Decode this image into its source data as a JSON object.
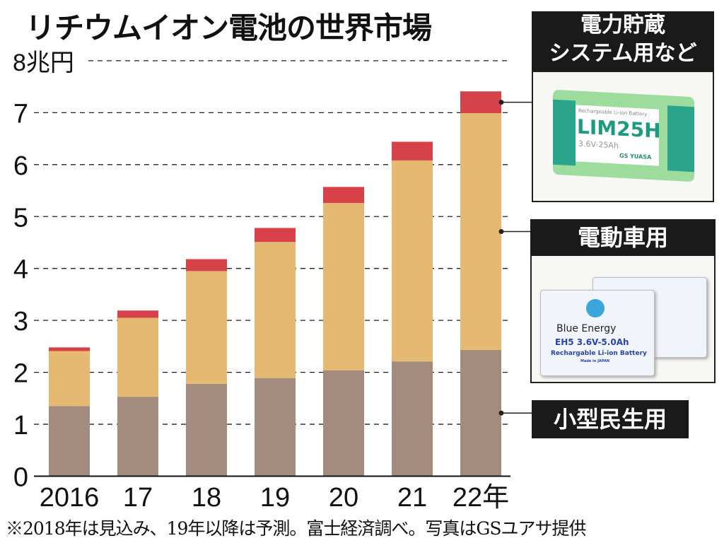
{
  "title": "リチウムイオン電池の世界市場",
  "footnote": "※2018年は見込み、19年以降は予測。富士経済調べ。写真はGSユアサ提供",
  "legend": {
    "storage": [
      "電力貯蔵",
      "システム用など"
    ],
    "ev": "電動車用",
    "consumer": "小型民生用"
  },
  "photos": {
    "storage": {
      "small": "Rechargeable Li-ion Battery",
      "model": "LIM25H",
      "spec": "3.6V-25Ah",
      "brand": "GS YUASA"
    },
    "ev": {
      "brand": "Blue Energy",
      "model": "EH5",
      "spec": "3.6V-5.0Ah",
      "desc": "Rechargable Li-ion Battery",
      "made": "Made in JAPAN"
    }
  },
  "colors": {
    "consumer": "#a38c7e",
    "ev": "#e6b972",
    "storage": "#d7414a"
  },
  "chart_data": {
    "type": "bar",
    "stacked": true,
    "title": "リチウムイオン電池の世界市場",
    "unit_label": "8兆円",
    "categories": [
      "2016",
      "17",
      "18",
      "19",
      "20",
      "21",
      "22年"
    ],
    "series": [
      {
        "name": "小型民生用",
        "values": [
          1.35,
          1.53,
          1.78,
          1.89,
          2.04,
          2.21,
          2.43
        ]
      },
      {
        "name": "電動車用",
        "values": [
          1.06,
          1.52,
          2.17,
          2.62,
          3.22,
          3.87,
          4.56
        ]
      },
      {
        "name": "電力貯蔵システム用など",
        "values": [
          0.07,
          0.14,
          0.23,
          0.27,
          0.31,
          0.36,
          0.42
        ]
      }
    ],
    "ylim": [
      0,
      8
    ],
    "yticks": [
      "0",
      "1",
      "2",
      "3",
      "4",
      "5",
      "6",
      "7",
      "8兆円"
    ],
    "grid": true,
    "legend": "right"
  }
}
